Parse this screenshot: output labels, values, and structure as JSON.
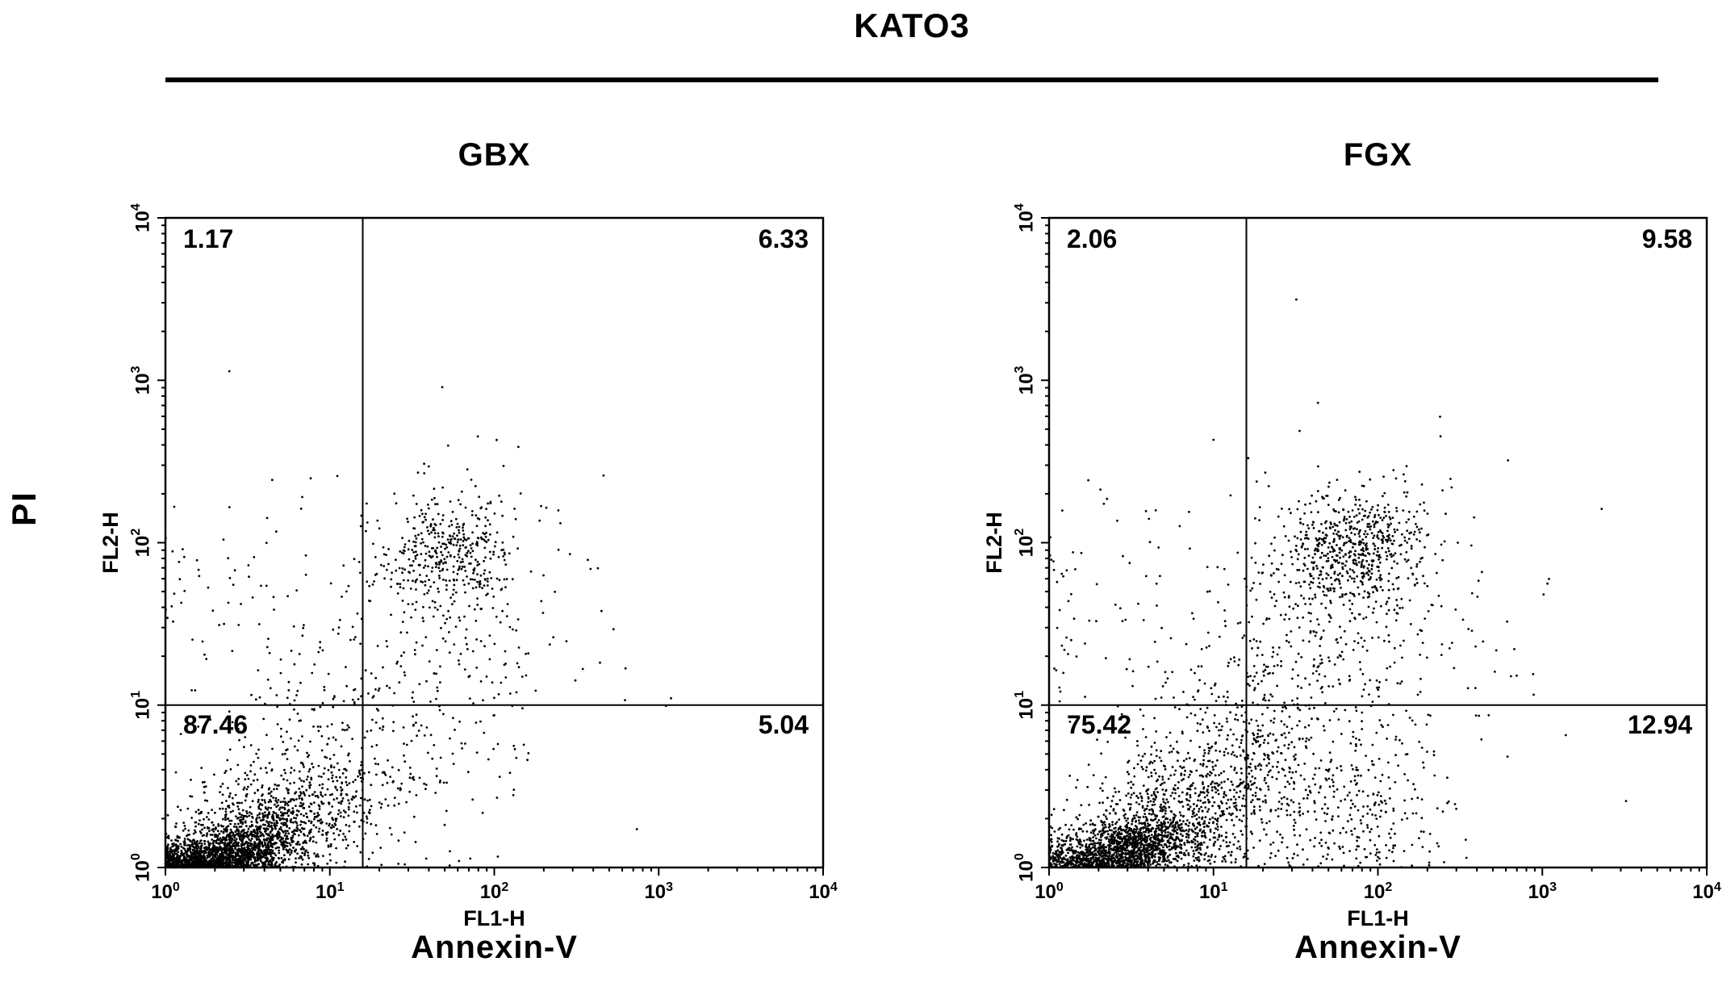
{
  "figure": {
    "title": "KATO3",
    "y_group_label": "PI"
  },
  "chart_data": [
    {
      "type": "scatter",
      "title": "GBX",
      "xlabel": "FL1-H",
      "ylabel": "FL2-H",
      "x_group_label": "Annexin-V",
      "xscale": "log",
      "yscale": "log",
      "xlim": [
        1,
        10000
      ],
      "ylim": [
        1,
        10000
      ],
      "tick_exponents": [
        0,
        1,
        2,
        3,
        4
      ],
      "grid": false,
      "seed": 7,
      "gate_log10": {
        "x": 1.2,
        "y": 1.0
      },
      "gate_values": {
        "x": 15.8,
        "y": 10
      },
      "quadrant_stats": {
        "upper_left": 1.17,
        "upper_right": 6.33,
        "lower_left": 87.46,
        "lower_right": 5.04
      },
      "point_clusters": [
        {
          "name": "viable-core",
          "center_log10": [
            0.35,
            0.08
          ],
          "sd_log10": [
            0.22,
            0.1
          ],
          "corr": 0.55,
          "count": 1500
        },
        {
          "name": "viable-fringe",
          "center_log10": [
            0.6,
            0.25
          ],
          "sd_log10": [
            0.35,
            0.22
          ],
          "corr": 0.5,
          "count": 900
        },
        {
          "name": "transition-spray",
          "center_log10": [
            0.95,
            0.62
          ],
          "sd_log10": [
            0.35,
            0.42
          ],
          "corr": 0.2,
          "count": 280
        },
        {
          "name": "late-apoptotic-cluster",
          "center_log10": [
            1.72,
            1.93
          ],
          "sd_log10": [
            0.2,
            0.17
          ],
          "corr": 0.1,
          "count": 360
        },
        {
          "name": "late-apoptotic-halo",
          "center_log10": [
            1.75,
            1.5
          ],
          "sd_log10": [
            0.4,
            0.45
          ],
          "corr": 0.1,
          "count": 240
        },
        {
          "name": "left-mid-sparse",
          "center_log10": [
            0.25,
            1.72
          ],
          "sd_log10": [
            0.3,
            0.24
          ],
          "corr": 0.0,
          "count": 35
        },
        {
          "name": "background-sparse",
          "center_log10": [
            1.3,
            0.9
          ],
          "sd_log10": [
            0.75,
            0.7
          ],
          "corr": 0.0,
          "count": 160
        }
      ]
    },
    {
      "type": "scatter",
      "title": "FGX",
      "xlabel": "FL1-H",
      "ylabel": "FL2-H",
      "x_group_label": "Annexin-V",
      "xscale": "log",
      "yscale": "log",
      "xlim": [
        1,
        10000
      ],
      "ylim": [
        1,
        10000
      ],
      "tick_exponents": [
        0,
        1,
        2,
        3,
        4
      ],
      "grid": false,
      "seed": 13,
      "gate_log10": {
        "x": 1.2,
        "y": 1.0
      },
      "gate_values": {
        "x": 15.8,
        "y": 10
      },
      "quadrant_stats": {
        "upper_left": 2.06,
        "upper_right": 9.58,
        "lower_left": 75.42,
        "lower_right": 12.94
      },
      "point_clusters": [
        {
          "name": "viable-core",
          "center_log10": [
            0.45,
            0.1
          ],
          "sd_log10": [
            0.25,
            0.11
          ],
          "corr": 0.55,
          "count": 1300
        },
        {
          "name": "viable-fringe",
          "center_log10": [
            0.7,
            0.3
          ],
          "sd_log10": [
            0.38,
            0.25
          ],
          "corr": 0.5,
          "count": 800
        },
        {
          "name": "transition-spray",
          "center_log10": [
            1.15,
            0.7
          ],
          "sd_log10": [
            0.35,
            0.45
          ],
          "corr": 0.2,
          "count": 430
        },
        {
          "name": "late-apoptotic-cluster",
          "center_log10": [
            1.85,
            1.98
          ],
          "sd_log10": [
            0.22,
            0.18
          ],
          "corr": 0.1,
          "count": 550
        },
        {
          "name": "late-apoptotic-halo",
          "center_log10": [
            1.8,
            1.45
          ],
          "sd_log10": [
            0.45,
            0.5
          ],
          "corr": 0.1,
          "count": 380
        },
        {
          "name": "left-mid-sparse",
          "center_log10": [
            0.25,
            1.7
          ],
          "sd_log10": [
            0.3,
            0.28
          ],
          "corr": 0.0,
          "count": 45
        },
        {
          "name": "early-apoptotic-lr",
          "center_log10": [
            1.85,
            0.35
          ],
          "sd_log10": [
            0.3,
            0.25
          ],
          "corr": 0.0,
          "count": 240
        },
        {
          "name": "background-sparse",
          "center_log10": [
            1.3,
            1.0
          ],
          "sd_log10": [
            0.8,
            0.75
          ],
          "corr": 0.0,
          "count": 170
        }
      ]
    }
  ]
}
